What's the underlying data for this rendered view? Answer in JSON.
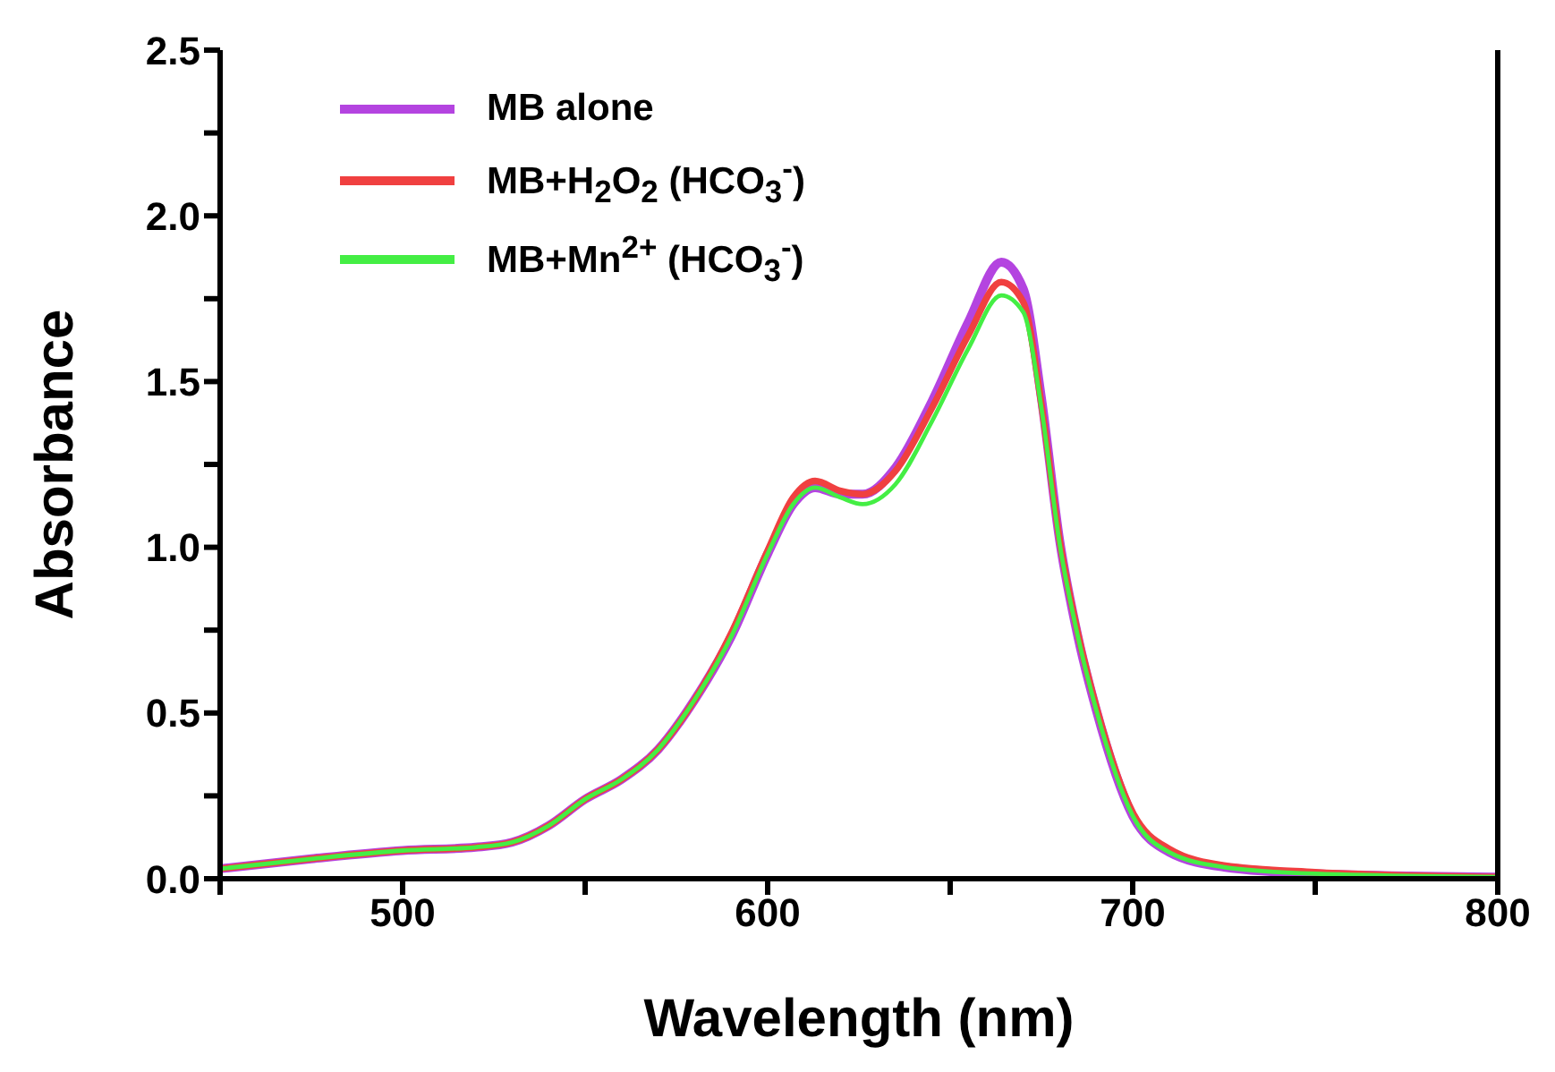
{
  "chart_data": {
    "type": "line",
    "xlabel": "Wavelength (nm)",
    "ylabel": "Absorbance",
    "x": [
      450,
      475,
      500,
      520,
      530,
      540,
      550,
      560,
      570,
      580,
      590,
      600,
      607,
      613,
      620,
      626,
      635,
      645,
      655,
      664,
      670,
      675,
      680,
      685,
      690,
      700,
      710,
      725,
      750,
      800
    ],
    "series": [
      {
        "name": "MB alone",
        "color": "#b444e0",
        "values": [
          0.03,
          0.06,
          0.085,
          0.095,
          0.11,
          0.16,
          0.24,
          0.3,
          0.39,
          0.54,
          0.73,
          0.98,
          1.13,
          1.18,
          1.16,
          1.16,
          1.24,
          1.44,
          1.68,
          1.86,
          1.78,
          1.45,
          1.02,
          0.73,
          0.51,
          0.19,
          0.08,
          0.035,
          0.015,
          0.005
        ]
      },
      {
        "name": "MB+H$_{2}$O$_{2}$ (HCO$_{3}$$^{-}$)",
        "color": "#f04040",
        "values": [
          0.03,
          0.06,
          0.085,
          0.095,
          0.11,
          0.16,
          0.24,
          0.3,
          0.39,
          0.54,
          0.74,
          0.99,
          1.15,
          1.2,
          1.17,
          1.16,
          1.23,
          1.42,
          1.64,
          1.8,
          1.74,
          1.43,
          1.02,
          0.74,
          0.52,
          0.2,
          0.09,
          0.04,
          0.02,
          0.005
        ]
      },
      {
        "name": "MB+Mn$^{2+}$ (HCO$_{3}$$^{-}$)",
        "color": "#44ee44",
        "values": [
          0.03,
          0.06,
          0.085,
          0.095,
          0.11,
          0.16,
          0.24,
          0.3,
          0.39,
          0.54,
          0.73,
          0.98,
          1.13,
          1.18,
          1.15,
          1.13,
          1.19,
          1.38,
          1.6,
          1.76,
          1.71,
          1.42,
          1.01,
          0.73,
          0.51,
          0.19,
          0.08,
          0.035,
          0.015,
          0.005
        ]
      }
    ],
    "xlim": [
      450,
      800
    ],
    "xticks": [
      {
        "value": 450,
        "label": null
      },
      500,
      {
        "value": 550,
        "label": null
      },
      600,
      {
        "value": 650,
        "label": null
      },
      700,
      {
        "value": 750,
        "label": null
      },
      800
    ],
    "ylim": [
      0,
      2.5
    ],
    "yticks": [
      {
        "value": 0,
        "label": "0.0"
      },
      {
        "value": 0.25,
        "label": null
      },
      0.5,
      {
        "value": 0.75,
        "label": null
      },
      {
        "value": 1,
        "label": "1.0"
      },
      {
        "value": 1.25,
        "label": null
      },
      1.5,
      {
        "value": 1.75,
        "label": null
      },
      {
        "value": 2,
        "label": "2.0"
      },
      {
        "value": 2.25,
        "label": null
      },
      2.5
    ],
    "grid": false,
    "legend": "top left",
    "marker": "none",
    "line_style": "solid"
  }
}
